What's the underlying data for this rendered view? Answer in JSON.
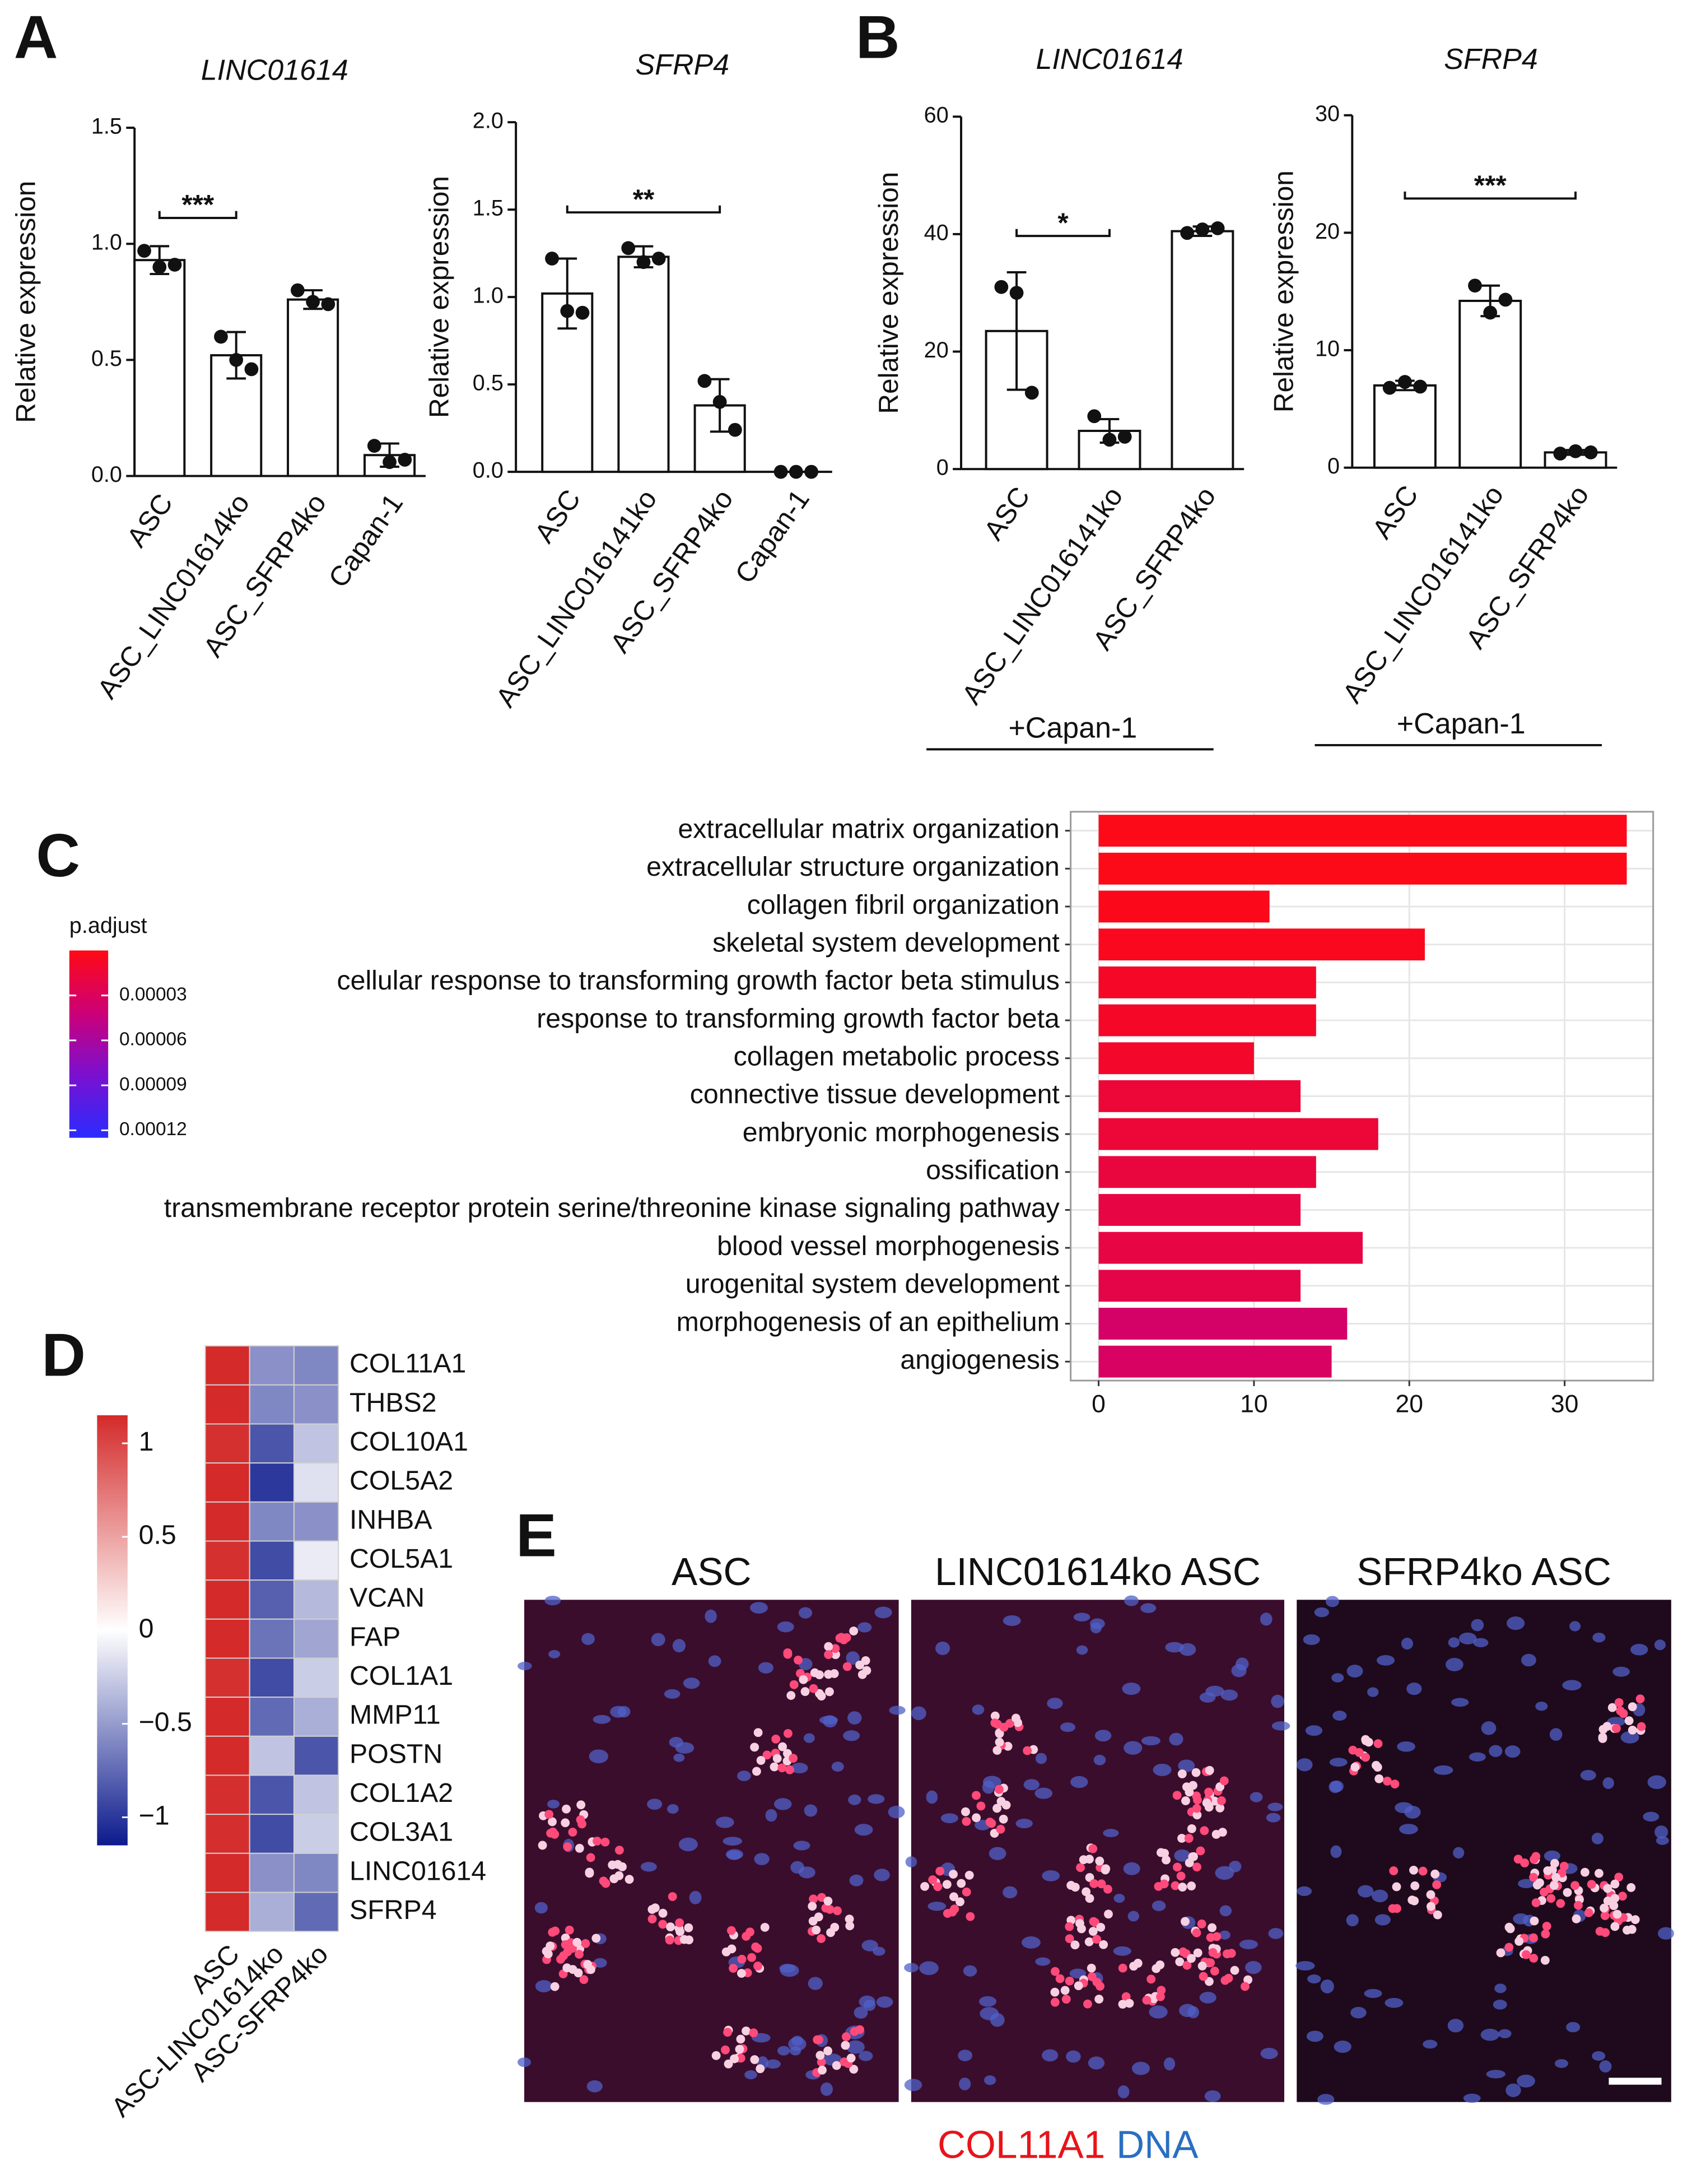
{
  "panel_labels": [
    "A",
    "B",
    "C",
    "D",
    "E"
  ],
  "chart_data": [
    {
      "type": "bar",
      "title": "LINC01614",
      "y_label": "Relative expression",
      "categories": [
        "ASC",
        "ASC_LINC01614ko",
        "ASC_SFRP4ko",
        "Capan-1"
      ],
      "values": [
        0.93,
        0.52,
        0.76,
        0.09
      ],
      "errors": [
        0.06,
        0.1,
        0.04,
        0.05
      ],
      "points": [
        [
          0.97,
          0.9,
          0.91
        ],
        [
          0.6,
          0.5,
          0.46
        ],
        [
          0.8,
          0.75,
          0.74
        ],
        [
          0.13,
          0.06,
          0.07
        ]
      ],
      "color": "#ffffff",
      "ylim": [
        0,
        1.5
      ],
      "yticks": [
        {
          "value": 0,
          "label": "0.0"
        },
        0.5,
        {
          "value": 1,
          "label": "1.0"
        },
        1.5
      ],
      "annotations": [
        "***"
      ]
    },
    {
      "type": "bar",
      "title": "SFRP4",
      "y_label": "Relative expression",
      "categories": [
        "ASC",
        "ASC_LINC016141ko",
        "ASC_SFRP4ko",
        "Capan-1"
      ],
      "values": [
        1.02,
        1.23,
        0.38,
        0
      ],
      "errors": [
        0.2,
        0.06,
        0.15,
        0
      ],
      "points": [
        [
          1.22,
          0.92,
          0.91
        ],
        [
          1.28,
          1.2,
          1.22
        ],
        [
          0.52,
          0.4,
          0.24
        ],
        [
          0,
          0,
          0
        ]
      ],
      "color": "#ffffff",
      "ylim": [
        0,
        2
      ],
      "yticks": [
        {
          "value": 0,
          "label": "0.0"
        },
        0.5,
        {
          "value": 1,
          "label": "1.0"
        },
        1.5,
        {
          "value": 2,
          "label": "2.0"
        }
      ],
      "annotations": [
        "**"
      ]
    },
    {
      "type": "bar",
      "title": "LINC01614",
      "y_label": "Relative expression",
      "categories": [
        "ASC",
        "ASC_LINC016141ko",
        "ASC_SFRP4ko"
      ],
      "values": [
        23.5,
        6.5,
        40.5
      ],
      "errors": [
        10,
        2,
        0.8
      ],
      "points": [
        [
          31,
          30,
          13
        ],
        [
          9,
          5,
          5.5
        ],
        [
          40.2,
          40.8,
          41
        ]
      ],
      "color": "#ffffff",
      "ylim": [
        0,
        60
      ],
      "yticks": [
        0,
        20,
        40,
        60
      ],
      "annotations": [
        "*"
      ],
      "group_label": "+Capan-1"
    },
    {
      "type": "bar",
      "title": "SFRP4",
      "y_label": "Relative expression",
      "categories": [
        "ASC",
        "ASC_LINC016141ko",
        "ASC_SFRP4ko"
      ],
      "values": [
        7,
        14.2,
        1.3
      ],
      "errors": [
        0.4,
        1.3,
        0.2
      ],
      "points": [
        [
          6.8,
          7.3,
          6.9
        ],
        [
          15.5,
          13.2,
          14.3
        ],
        [
          1.2,
          1.4,
          1.3
        ]
      ],
      "color": "#ffffff",
      "ylim": [
        0,
        30
      ],
      "yticks": [
        0,
        10,
        20,
        30
      ],
      "annotations": [
        "***"
      ],
      "group_label": "+Capan-1"
    },
    {
      "type": "hbar",
      "categories": [
        "extracellular matrix organization",
        "extracellular structure organization",
        "collagen fibril organization",
        "skeletal system development",
        "cellular response to transforming growth factor beta stimulus",
        "response to transforming growth factor beta",
        "collagen metabolic process",
        "connective tissue development",
        "embryonic morphogenesis",
        "ossification",
        "transmembrane receptor protein serine/threonine kinase signaling pathway",
        "blood vessel morphogenesis",
        "urogenital system development",
        "morphogenesis of an epithelium",
        "angiogenesis"
      ],
      "values": [
        34,
        34,
        11,
        21,
        14,
        14,
        10,
        13,
        18,
        14,
        13,
        17,
        13,
        16,
        15
      ],
      "p_adjust": [
        2e-06,
        2e-06,
        3e-06,
        4e-06,
        8e-06,
        8e-06,
        1e-05,
        1.5e-05,
        1.5e-05,
        1.8e-05,
        2e-05,
        2e-05,
        2.2e-05,
        3.5e-05,
        3.3e-05
      ],
      "xlim": [
        -1.8,
        35.7
      ],
      "xticks": [
        0,
        10,
        20,
        30
      ],
      "grid": true,
      "colorbar": {
        "title": "p.adjust",
        "colors": [
          "#ff0a14",
          "#cc0077",
          "#7a10d0",
          "#2a2cff"
        ],
        "lim": [
          0,
          0.000125
        ],
        "ticks": [
          3e-05,
          6e-05,
          9e-05,
          0.00012
        ]
      }
    },
    {
      "type": "heatmap",
      "rows": [
        "COL11A1",
        "THBS2",
        "COL10A1",
        "COL5A2",
        "INHBA",
        "COL5A1",
        "VCAN",
        "FAP",
        "COL1A1",
        "MMP11",
        "POSTN",
        "COL1A2",
        "COL3A1",
        "LINC01614",
        "SFRP4"
      ],
      "columns": [
        "ASC",
        "ASC-LINC01614ko",
        "ASC-SFRP4ko"
      ],
      "values": [
        [
          1.15,
          -0.55,
          -0.6
        ],
        [
          1.15,
          -0.6,
          -0.55
        ],
        [
          1.12,
          -0.85,
          -0.3
        ],
        [
          1.15,
          -1.0,
          -0.15
        ],
        [
          1.15,
          -0.6,
          -0.55
        ],
        [
          1.12,
          -0.9,
          -0.1
        ],
        [
          1.15,
          -0.8,
          -0.35
        ],
        [
          1.15,
          -0.7,
          -0.45
        ],
        [
          1.12,
          -0.9,
          -0.25
        ],
        [
          1.15,
          -0.75,
          -0.4
        ],
        [
          1.15,
          -0.3,
          -0.85
        ],
        [
          1.13,
          -0.85,
          -0.3
        ],
        [
          1.13,
          -0.9,
          -0.25
        ],
        [
          1.15,
          -0.55,
          -0.6
        ],
        [
          1.15,
          -0.4,
          -0.75
        ]
      ],
      "zlim": [
        -1.15,
        1.15
      ],
      "colors": [
        "#0c1a8c",
        "#ffffff",
        "#d42a2a"
      ],
      "colorbar_ticks": [
        1,
        0.5,
        0,
        {
          "value": -0.5,
          "label": "−0.5"
        },
        {
          "value": -1,
          "label": "−1"
        }
      ]
    }
  ],
  "images": {
    "titles": [
      "ASC",
      "LINC01614ko ASC",
      "SFRP4ko ASC"
    ],
    "caption": [
      {
        "text": "COL11A1",
        "color": "#e8141a"
      },
      {
        "text": "DNA",
        "color": "#2a6fc0"
      }
    ]
  }
}
